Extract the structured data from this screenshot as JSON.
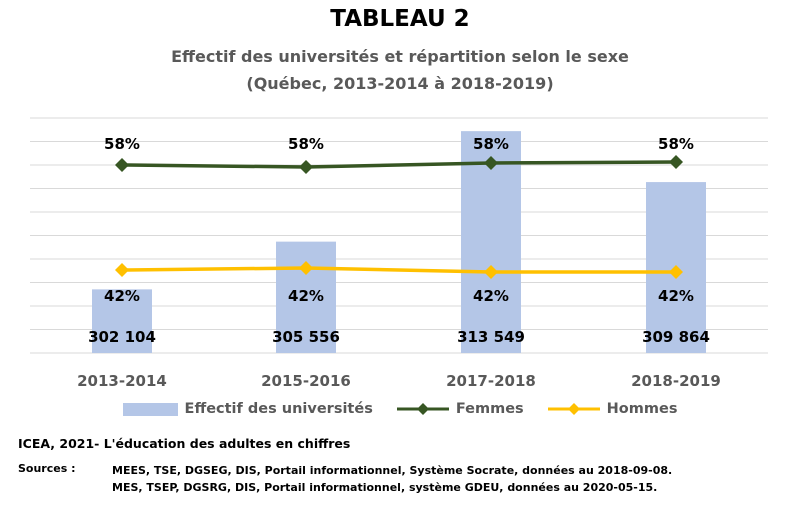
{
  "header": {
    "title": "TABLEAU 2",
    "subtitle_line1": "Effectif des universités et répartition selon le sexe",
    "subtitle_line2": "(Québec, 2013-2014 à 2018-2019)"
  },
  "chart_data": {
    "type": "bar",
    "categories": [
      "2013-2014",
      "2015-2016",
      "2017-2018",
      "2018-2019"
    ],
    "bar_labels": [
      "302 104",
      "305 556",
      "313 549",
      "309 864"
    ],
    "series": [
      {
        "name": "Effectif des universités",
        "type": "bar",
        "values": [
          302104,
          305556,
          313549,
          309864
        ],
        "color": "#b4c6e7"
      },
      {
        "name": "Femmes",
        "type": "line",
        "values": [
          58,
          58,
          58,
          58
        ],
        "labels": [
          "58%",
          "58%",
          "58%",
          "58%"
        ],
        "color": "#375623"
      },
      {
        "name": "Hommes",
        "type": "line",
        "values": [
          42,
          42,
          42,
          42
        ],
        "labels": [
          "42%",
          "42%",
          "42%",
          "42%"
        ],
        "color": "#ffc000"
      }
    ],
    "grid": true,
    "legend_position": "bottom"
  },
  "legend": {
    "bar_label": "Effectif des universités",
    "femmes_label": "Femmes",
    "hommes_label": "Hommes"
  },
  "footer": {
    "source_title": "ICEA, 2021- L'éducation des adultes en chiffres",
    "sources_label": "Sources :",
    "sources": [
      "MEES, TSE, DGSEG, DIS, Portail informationnel, Système Socrate, données au 2018-09-08.",
      "MES, TSEP, DGSRG, DIS, Portail informationnel, système GDEU, données au 2020-05-15."
    ]
  }
}
